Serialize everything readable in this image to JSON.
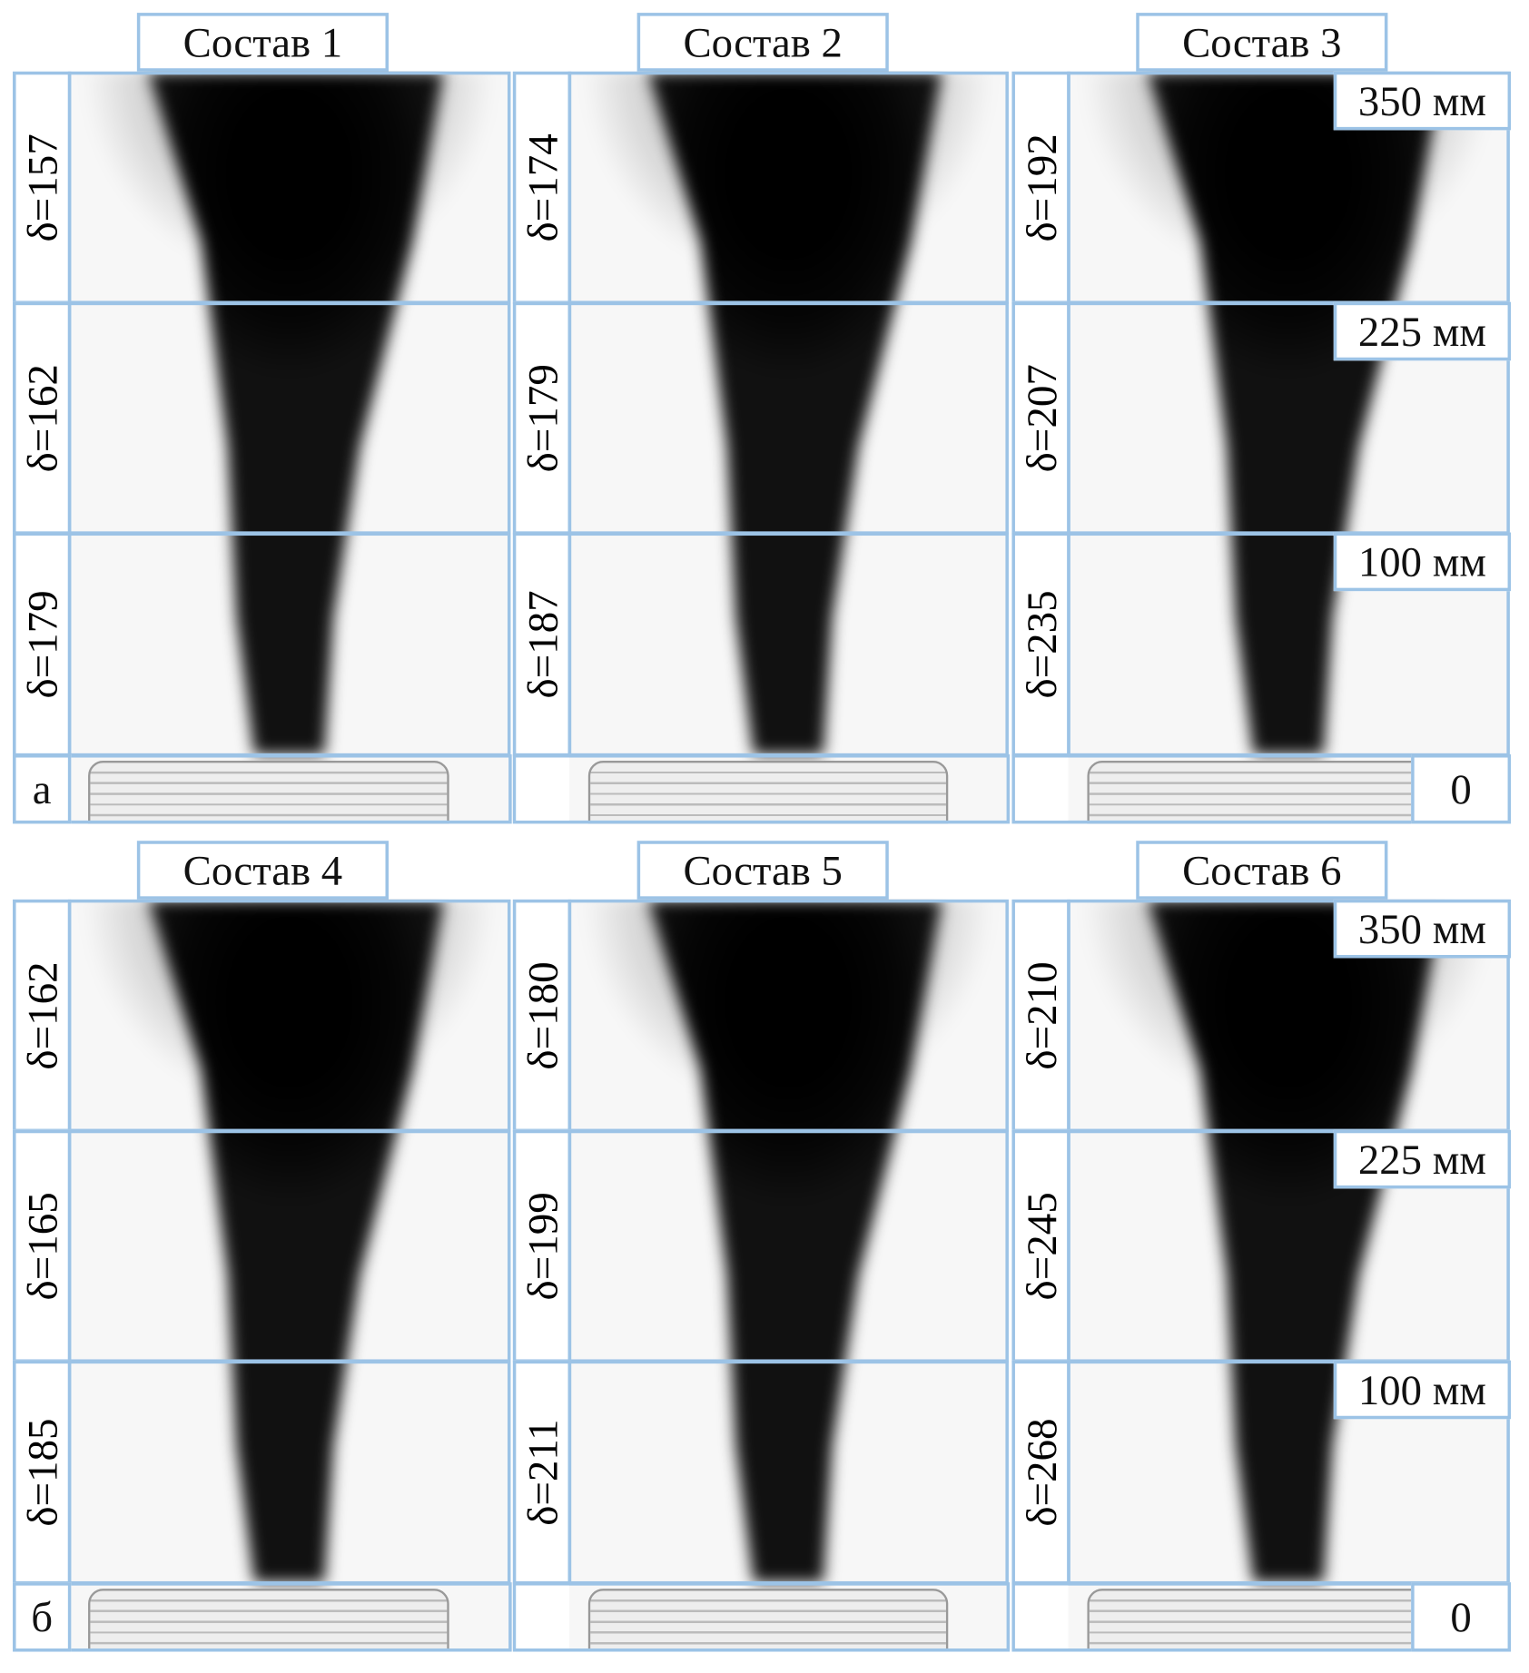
{
  "panels": [
    {
      "label": "а",
      "compositions": [
        {
          "title": "Состав 1",
          "deltas": [
            "δ=157",
            "δ=162",
            "δ=179"
          ]
        },
        {
          "title": "Состав 2",
          "deltas": [
            "δ=174",
            "δ=179",
            "δ=187"
          ]
        },
        {
          "title": "Состав 3",
          "deltas": [
            "δ=192",
            "δ=207",
            "δ=235"
          ]
        }
      ]
    },
    {
      "label": "б",
      "compositions": [
        {
          "title": "Состав 4",
          "deltas": [
            "δ=162",
            "δ=165",
            "δ=185"
          ]
        },
        {
          "title": "Состав 5",
          "deltas": [
            "δ=180",
            "δ=199",
            "δ=211"
          ]
        },
        {
          "title": "Состав 6",
          "deltas": [
            "δ=210",
            "δ=245",
            "δ=268"
          ]
        }
      ]
    }
  ],
  "heights": [
    "350 мм",
    "225 мм",
    "100 мм"
  ],
  "zero_label": "0",
  "colors": {
    "frame": "#9cc3e6",
    "plume": "#111111"
  }
}
